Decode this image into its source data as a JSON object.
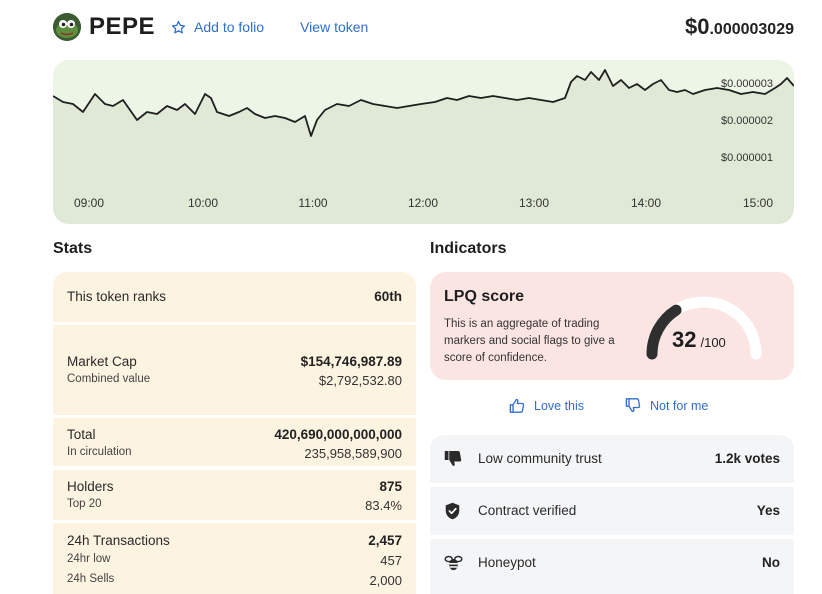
{
  "token": {
    "symbol": "PEPE",
    "logo_icon": "pepe-frog-icon",
    "add_to_folio": "Add to folio",
    "view_token": "View token",
    "price_prefix": "$0",
    "price_suffix": ".000003029"
  },
  "chart": {
    "time_labels": [
      "09:00",
      "10:00",
      "11:00",
      "12:00",
      "13:00",
      "14:00",
      "15:00"
    ],
    "price_labels": [
      "$0.000003",
      "$0.000002",
      "$0.000001"
    ],
    "line_color": "#1f1f1f",
    "fill_color": "#dfe9d6",
    "background": "#edf5e6"
  },
  "stats": {
    "title": "Stats",
    "rank": {
      "label": "This token ranks",
      "value": "60th"
    },
    "market_cap": {
      "label": "Market Cap",
      "value": "$154,746,987.89",
      "sub_label": "Combined value",
      "sub_value": "$2,792,532.80"
    },
    "total": {
      "label": "Total",
      "value": "420,690,000,000,000",
      "sub_label": "In circulation",
      "sub_value": "235,958,589,900"
    },
    "holders": {
      "label": "Holders",
      "value": "875",
      "sub_label": "Top 20",
      "sub_value": "83.4%"
    },
    "transactions": {
      "label": "24h Transactions",
      "value": "2,457",
      "low_label": "24hr low",
      "low_value": "457",
      "sells_label": "24h Sells",
      "sells_value": "2,000"
    }
  },
  "indicators": {
    "title": "Indicators",
    "lpq": {
      "title": "LPQ score",
      "description": "This is an aggregate of trading markers and social flags to give a score of confidence.",
      "score": 32,
      "score_text": "32",
      "max_text": "/100",
      "max": 100
    },
    "love_label": "Love this",
    "not_for_me_label": "Not for me",
    "items": [
      {
        "icon": "thumbs-down-icon",
        "label": "Low community trust",
        "value": "1.2k votes"
      },
      {
        "icon": "shield-check-icon",
        "label": "Contract verified",
        "value": "Yes"
      },
      {
        "icon": "bee-icon",
        "label": "Honeypot",
        "value": "No"
      }
    ]
  },
  "colors": {
    "accent": "#2f6fcf",
    "stats_bg": "#fdf3e1",
    "lpq_bg": "#fbe5e3",
    "indicator_bg": "#f4f5f7"
  }
}
